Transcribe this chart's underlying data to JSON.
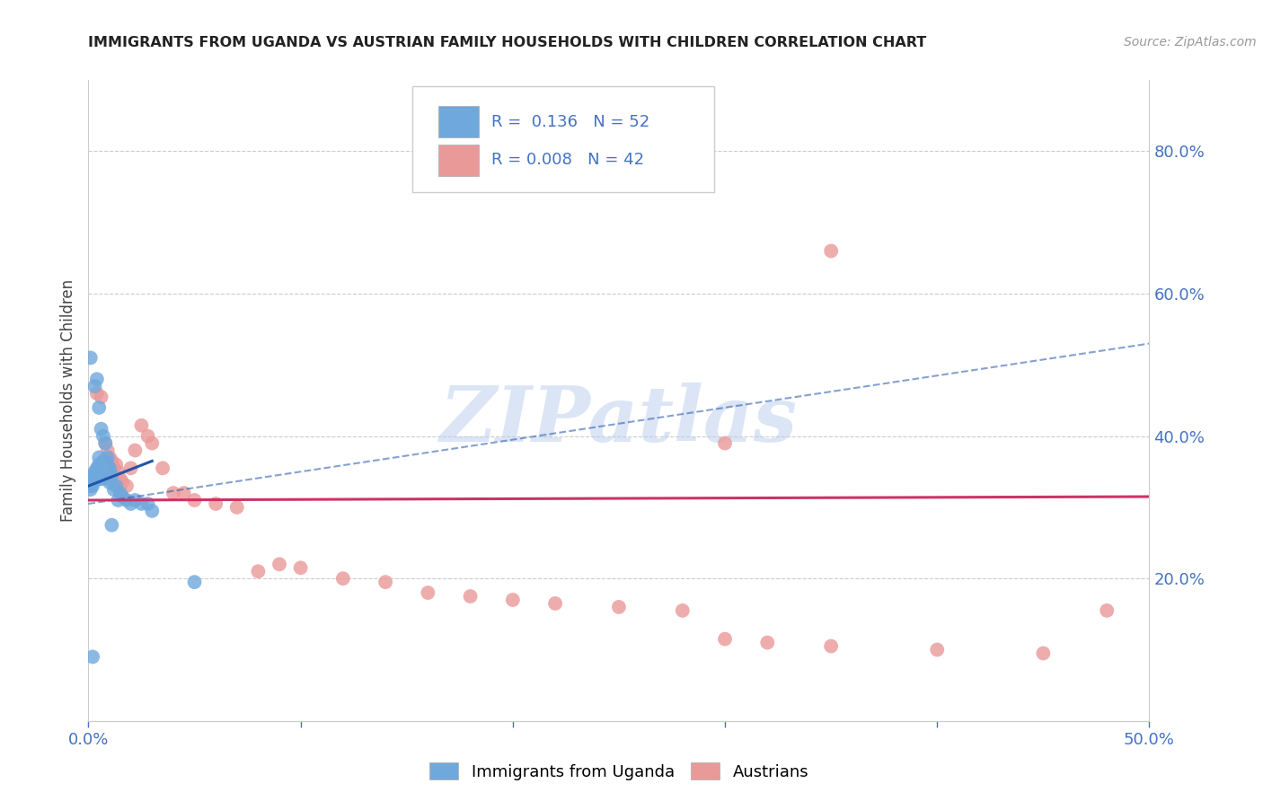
{
  "title": "IMMIGRANTS FROM UGANDA VS AUSTRIAN FAMILY HOUSEHOLDS WITH CHILDREN CORRELATION CHART",
  "source": "Source: ZipAtlas.com",
  "ylabel": "Family Households with Children",
  "xlim": [
    0.0,
    0.5
  ],
  "ylim": [
    0.0,
    0.9
  ],
  "x_ticks": [
    0.0,
    0.1,
    0.2,
    0.3,
    0.4,
    0.5
  ],
  "x_tick_labels": [
    "0.0%",
    "",
    "",
    "",
    "",
    "50.0%"
  ],
  "y_ticks_right": [
    0.2,
    0.4,
    0.6,
    0.8
  ],
  "y_tick_labels_right": [
    "20.0%",
    "40.0%",
    "60.0%",
    "80.0%"
  ],
  "legend_R_blue": "0.136",
  "legend_N_blue": "52",
  "legend_R_pink": "0.008",
  "legend_N_pink": "42",
  "blue_color": "#6fa8dc",
  "pink_color": "#ea9999",
  "blue_line_color": "#2255aa",
  "pink_line_color": "#cc3366",
  "watermark_text": "ZIPatlas",
  "blue_scatter_x": [
    0.001,
    0.001,
    0.001,
    0.002,
    0.002,
    0.002,
    0.002,
    0.003,
    0.003,
    0.003,
    0.004,
    0.004,
    0.004,
    0.005,
    0.005,
    0.005,
    0.006,
    0.006,
    0.006,
    0.007,
    0.007,
    0.007,
    0.008,
    0.008,
    0.009,
    0.009,
    0.01,
    0.01,
    0.011,
    0.012,
    0.013,
    0.014,
    0.015,
    0.016,
    0.018,
    0.02,
    0.022,
    0.025,
    0.028,
    0.03,
    0.003,
    0.004,
    0.005,
    0.006,
    0.007,
    0.008,
    0.009,
    0.01,
    0.011,
    0.05,
    0.002,
    0.001
  ],
  "blue_scatter_y": [
    0.335,
    0.33,
    0.325,
    0.34,
    0.345,
    0.335,
    0.33,
    0.35,
    0.345,
    0.34,
    0.355,
    0.35,
    0.345,
    0.34,
    0.37,
    0.36,
    0.355,
    0.35,
    0.34,
    0.365,
    0.355,
    0.345,
    0.365,
    0.355,
    0.36,
    0.34,
    0.355,
    0.335,
    0.345,
    0.325,
    0.33,
    0.31,
    0.32,
    0.315,
    0.31,
    0.305,
    0.31,
    0.305,
    0.305,
    0.295,
    0.47,
    0.48,
    0.44,
    0.41,
    0.4,
    0.39,
    0.37,
    0.35,
    0.275,
    0.195,
    0.09,
    0.51
  ],
  "pink_scatter_x": [
    0.004,
    0.006,
    0.008,
    0.009,
    0.01,
    0.011,
    0.012,
    0.013,
    0.014,
    0.015,
    0.016,
    0.018,
    0.02,
    0.022,
    0.025,
    0.028,
    0.03,
    0.035,
    0.04,
    0.045,
    0.05,
    0.06,
    0.07,
    0.08,
    0.09,
    0.1,
    0.12,
    0.14,
    0.16,
    0.18,
    0.2,
    0.22,
    0.25,
    0.28,
    0.3,
    0.32,
    0.35,
    0.4,
    0.45,
    0.48,
    0.35,
    0.3
  ],
  "pink_scatter_y": [
    0.46,
    0.455,
    0.39,
    0.38,
    0.37,
    0.365,
    0.355,
    0.36,
    0.35,
    0.34,
    0.335,
    0.33,
    0.355,
    0.38,
    0.415,
    0.4,
    0.39,
    0.355,
    0.32,
    0.32,
    0.31,
    0.305,
    0.3,
    0.21,
    0.22,
    0.215,
    0.2,
    0.195,
    0.18,
    0.175,
    0.17,
    0.165,
    0.16,
    0.155,
    0.115,
    0.11,
    0.105,
    0.1,
    0.095,
    0.155,
    0.66,
    0.39
  ],
  "blue_solid_line_x": [
    0.0,
    0.03
  ],
  "blue_solid_line_y": [
    0.33,
    0.365
  ],
  "blue_dash_line_x": [
    0.0,
    0.5
  ],
  "blue_dash_line_y": [
    0.305,
    0.53
  ],
  "pink_line_x": [
    0.0,
    0.5
  ],
  "pink_line_y": [
    0.31,
    0.315
  ]
}
